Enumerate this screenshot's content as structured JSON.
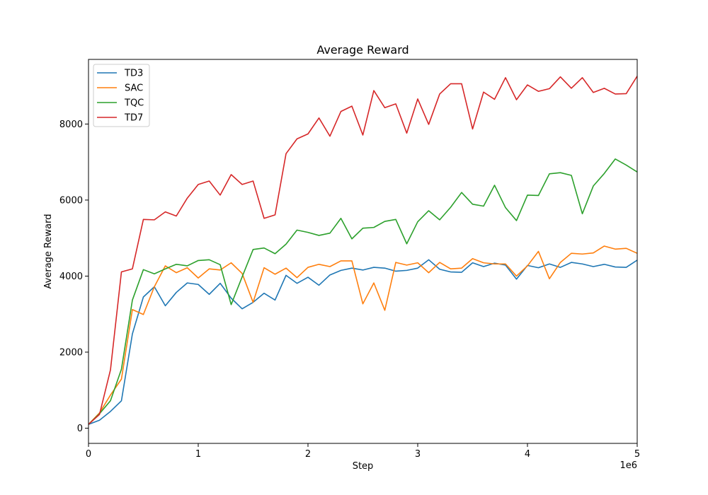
{
  "chart_data": {
    "type": "line",
    "title": "Average Reward",
    "xlabel": "Step",
    "ylabel": "Average Reward",
    "x_offset_text": "1e6",
    "xlim": [
      0,
      5
    ],
    "ylim": [
      -400,
      9700
    ],
    "xticks": [
      0,
      1,
      2,
      3,
      4,
      5
    ],
    "xtick_labels": [
      "0",
      "1",
      "2",
      "3",
      "4",
      "5"
    ],
    "yticks": [
      0,
      2000,
      4000,
      6000,
      8000
    ],
    "ytick_labels": [
      "0",
      "2000",
      "4000",
      "6000",
      "8000"
    ],
    "grid": false,
    "legend_position": "top-left",
    "x": [
      0,
      0.1,
      0.2,
      0.3,
      0.4,
      0.5,
      0.6,
      0.7,
      0.8,
      0.9,
      1.0,
      1.1,
      1.2,
      1.3,
      1.4,
      1.5,
      1.6,
      1.7,
      1.8,
      1.9,
      2.0,
      2.1,
      2.2,
      2.3,
      2.4,
      2.5,
      2.6,
      2.7,
      2.8,
      2.9,
      3.0,
      3.1,
      3.2,
      3.3,
      3.4,
      3.5,
      3.6,
      3.7,
      3.8,
      3.9,
      4.0,
      4.1,
      4.2,
      4.3,
      4.4,
      4.5,
      4.6,
      4.7,
      4.8,
      4.9,
      5.0
    ],
    "series": [
      {
        "name": "TD3",
        "color": "#1f77b4",
        "values": [
          100,
          210,
          440,
          720,
          2480,
          3450,
          3720,
          3220,
          3570,
          3820,
          3780,
          3520,
          3810,
          3420,
          3140,
          3310,
          3550,
          3370,
          4020,
          3810,
          3970,
          3760,
          4030,
          4150,
          4210,
          4160,
          4230,
          4210,
          4130,
          4150,
          4210,
          4430,
          4180,
          4110,
          4100,
          4350,
          4250,
          4340,
          4290,
          3920,
          4280,
          4220,
          4320,
          4230,
          4360,
          4320,
          4250,
          4310,
          4240,
          4230,
          4420
        ]
      },
      {
        "name": "SAC",
        "color": "#ff7f0e",
        "values": [
          100,
          400,
          870,
          1290,
          3120,
          2990,
          3720,
          4270,
          4090,
          4220,
          3950,
          4190,
          4160,
          4350,
          4070,
          3310,
          4220,
          4050,
          4210,
          3960,
          4230,
          4310,
          4250,
          4400,
          4400,
          3270,
          3820,
          3100,
          4360,
          4290,
          4350,
          4090,
          4360,
          4190,
          4210,
          4460,
          4350,
          4320,
          4320,
          4000,
          4270,
          4650,
          3930,
          4360,
          4600,
          4580,
          4610,
          4790,
          4710,
          4730,
          4600
        ]
      },
      {
        "name": "TQC",
        "color": "#2ca02c",
        "values": [
          100,
          380,
          720,
          1550,
          3370,
          4170,
          4060,
          4190,
          4310,
          4270,
          4410,
          4430,
          4300,
          3250,
          3980,
          4700,
          4740,
          4590,
          4840,
          5210,
          5150,
          5070,
          5130,
          5520,
          4980,
          5260,
          5280,
          5440,
          5490,
          4850,
          5430,
          5720,
          5480,
          5810,
          6200,
          5890,
          5840,
          6390,
          5800,
          5460,
          6130,
          6120,
          6690,
          6720,
          6650,
          5640,
          6370,
          6700,
          7080,
          6920,
          6740
        ]
      },
      {
        "name": "TD7",
        "color": "#d62728",
        "values": [
          100,
          360,
          1530,
          4110,
          4190,
          5490,
          5480,
          5690,
          5580,
          6050,
          6410,
          6500,
          6130,
          6670,
          6410,
          6500,
          5520,
          5610,
          7220,
          7610,
          7740,
          8160,
          7680,
          8330,
          8470,
          7710,
          8880,
          8430,
          8530,
          7760,
          8660,
          7990,
          8790,
          9060,
          9060,
          7870,
          8840,
          8650,
          9220,
          8640,
          9030,
          8860,
          8930,
          9240,
          8940,
          9220,
          8830,
          8940,
          8790,
          8800,
          9260
        ]
      }
    ]
  }
}
